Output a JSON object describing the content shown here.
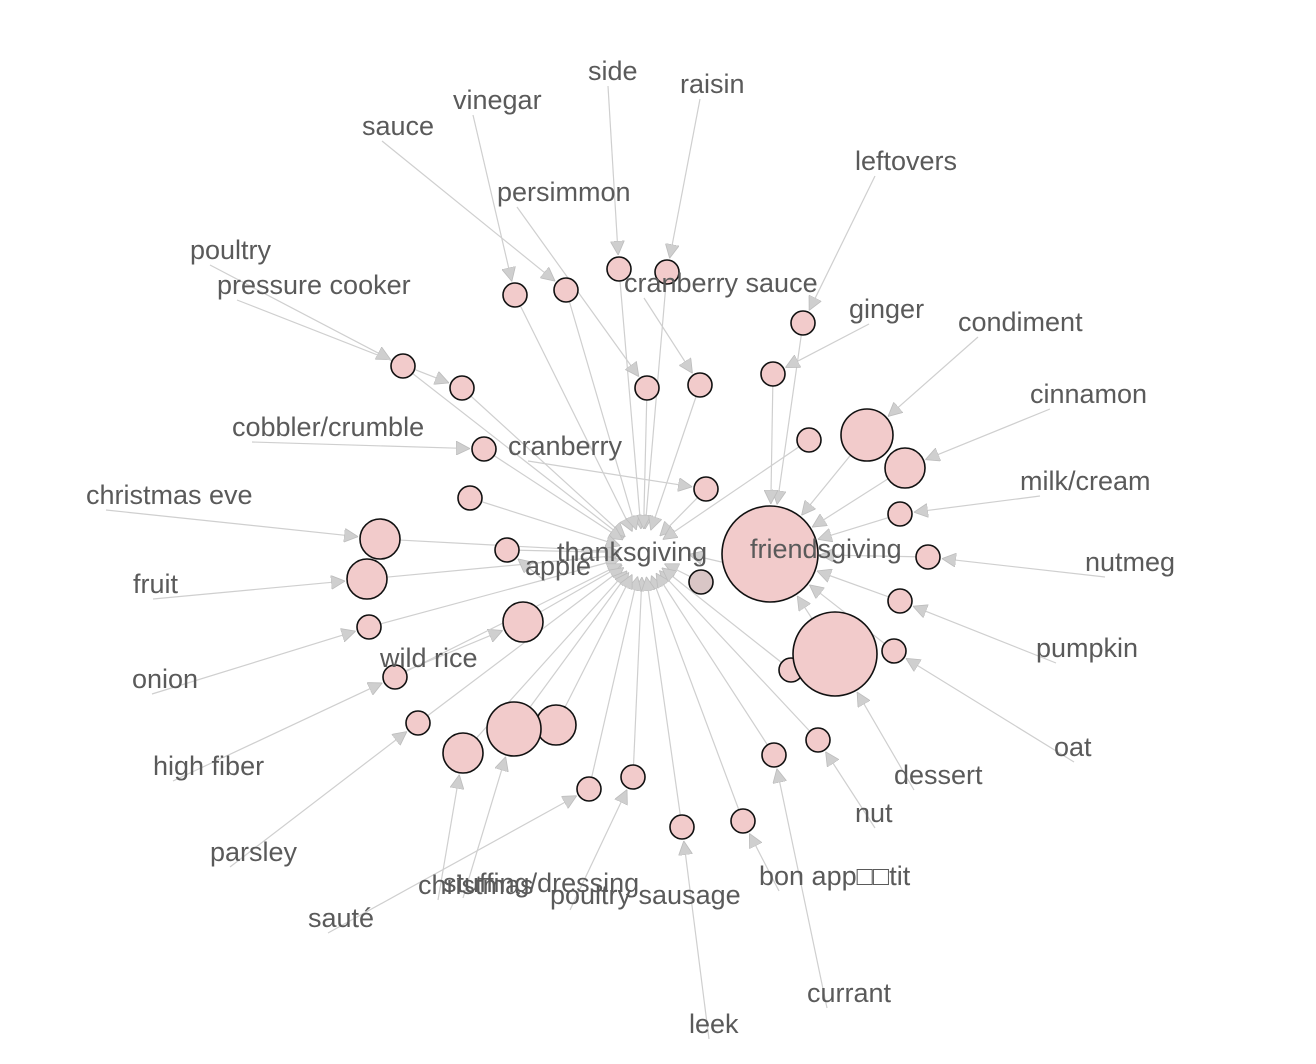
{
  "graph": {
    "node_fill": "#f2cbcb",
    "node_stroke": "#111111",
    "edge_color": "#cfcfcf",
    "label_color": "#5a5a5a",
    "hubs": [
      {
        "id": "thanksgiving",
        "label": "thanksgiving"
      },
      {
        "id": "friendsgiving",
        "label": "friendsgiving"
      }
    ],
    "nodes": [
      {
        "id": "side",
        "label": "side"
      },
      {
        "id": "raisin",
        "label": "raisin"
      },
      {
        "id": "vinegar",
        "label": "vinegar"
      },
      {
        "id": "sauce",
        "label": "sauce"
      },
      {
        "id": "persimmon",
        "label": "persimmon"
      },
      {
        "id": "leftovers",
        "label": "leftovers"
      },
      {
        "id": "poultry",
        "label": "poultry"
      },
      {
        "id": "pressure-cooker",
        "label": "pressure cooker"
      },
      {
        "id": "cranberry-sauce",
        "label": "cranberry sauce"
      },
      {
        "id": "ginger",
        "label": "ginger"
      },
      {
        "id": "condiment",
        "label": "condiment"
      },
      {
        "id": "cinnamon",
        "label": "cinnamon"
      },
      {
        "id": "cobbler-crumble",
        "label": "cobbler/crumble"
      },
      {
        "id": "cranberry",
        "label": "cranberry"
      },
      {
        "id": "christmas-eve",
        "label": "christmas eve"
      },
      {
        "id": "milk-cream",
        "label": "milk/cream"
      },
      {
        "id": "nutmeg",
        "label": "nutmeg"
      },
      {
        "id": "fruit",
        "label": "fruit"
      },
      {
        "id": "apple",
        "label": "apple"
      },
      {
        "id": "pumpkin",
        "label": "pumpkin"
      },
      {
        "id": "onion",
        "label": "onion"
      },
      {
        "id": "wild-rice",
        "label": "wild rice"
      },
      {
        "id": "oat",
        "label": "oat"
      },
      {
        "id": "high-fiber",
        "label": "high fiber"
      },
      {
        "id": "dessert",
        "label": "dessert"
      },
      {
        "id": "nut",
        "label": "nut"
      },
      {
        "id": "parsley",
        "label": "parsley"
      },
      {
        "id": "christmas",
        "label": "christmas"
      },
      {
        "id": "stuffing-dressing",
        "label": "stuffing/dressing"
      },
      {
        "id": "poultry-sausage",
        "label": "poultry sausage"
      },
      {
        "id": "bon-appetit",
        "label": "bon app□□tit"
      },
      {
        "id": "saute",
        "label": "sauté"
      },
      {
        "id": "currant",
        "label": "currant"
      },
      {
        "id": "leek",
        "label": "leek"
      }
    ]
  }
}
